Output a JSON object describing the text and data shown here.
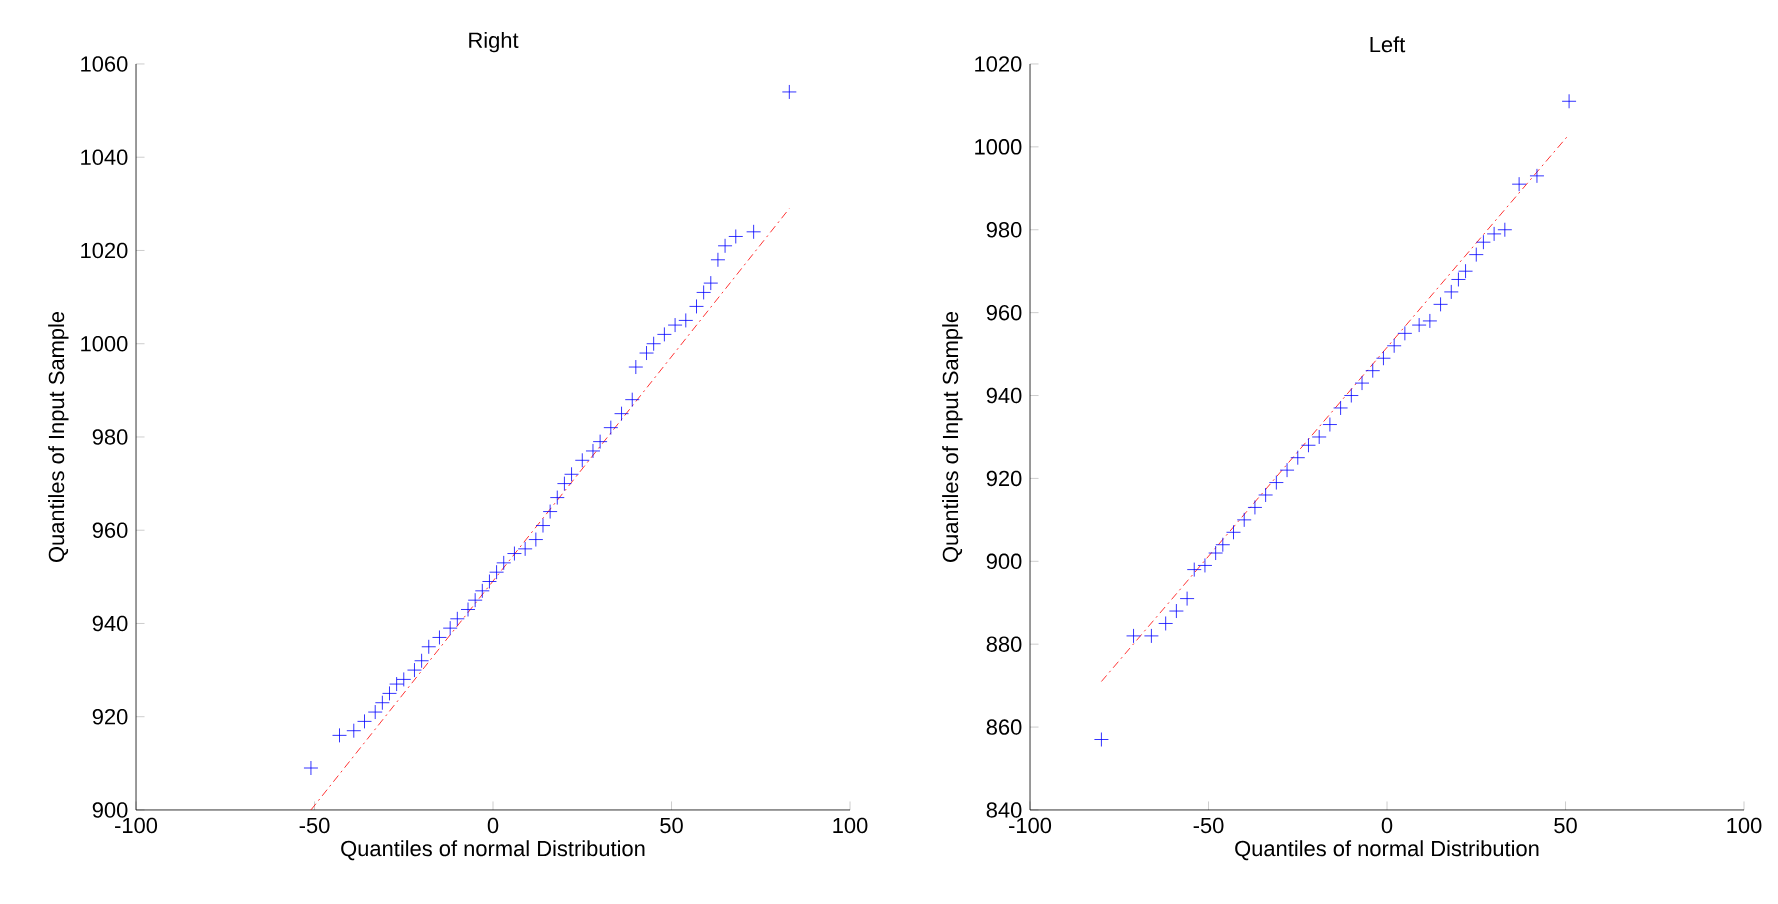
{
  "chart_data": [
    {
      "type": "scatter",
      "title": "Right",
      "xlabel": "Quantiles of normal Distribution",
      "ylabel": "Quantiles of Input Sample",
      "xlim": [
        -100,
        100
      ],
      "ylim": [
        900,
        1060
      ],
      "xticks": [
        -100,
        -50,
        0,
        50,
        100
      ],
      "yticks": [
        900,
        920,
        940,
        960,
        980,
        1000,
        1020,
        1040,
        1060
      ],
      "series": [
        {
          "color": "#0000ff",
          "marker": "cross",
          "x": [
            -51,
            -43,
            -39,
            -36,
            -33,
            -31,
            -29,
            -27,
            -25,
            -22,
            -20,
            -18,
            -15,
            -12,
            -10,
            -7,
            -5,
            -3,
            -1,
            1,
            3,
            6,
            9,
            12,
            14,
            16,
            18,
            20,
            22,
            25,
            28,
            30,
            33,
            36,
            39,
            40,
            43,
            45,
            48,
            51,
            54,
            57,
            59,
            61,
            63,
            65,
            68,
            73,
            83
          ],
          "values": [
            909,
            916,
            917,
            919,
            921,
            923,
            925,
            927,
            928,
            930,
            932,
            935,
            937,
            939,
            941,
            943,
            945,
            947,
            949,
            951,
            953,
            955,
            956,
            958,
            961,
            964,
            967,
            970,
            972,
            975,
            977,
            979,
            982,
            985,
            988,
            995,
            998,
            1000,
            1002,
            1004,
            1005,
            1008,
            1011,
            1013,
            1018,
            1021,
            1023,
            1024,
            1054
          ]
        },
        {
          "type": "line",
          "color": "#ff0000",
          "line_style": "dashed",
          "x": [
            -51,
            83
          ],
          "values": [
            900,
            1029
          ]
        }
      ]
    },
    {
      "type": "scatter",
      "title": "Left",
      "xlabel": "Quantiles of normal Distribution",
      "ylabel": "Quantiles of Input Sample",
      "xlim": [
        -100,
        100
      ],
      "ylim": [
        840,
        1020
      ],
      "xticks": [
        -100,
        -50,
        0,
        50,
        100
      ],
      "yticks": [
        840,
        860,
        880,
        900,
        920,
        940,
        960,
        980,
        1000,
        1020
      ],
      "series": [
        {
          "color": "#0000ff",
          "marker": "cross",
          "x": [
            -80,
            -71,
            -66,
            -62,
            -59,
            -56,
            -54,
            -51,
            -48,
            -46,
            -43,
            -40,
            -37,
            -34,
            -31,
            -28,
            -25,
            -22,
            -19,
            -16,
            -13,
            -10,
            -7,
            -4,
            -1,
            2,
            5,
            9,
            12,
            15,
            18,
            20,
            22,
            25,
            27,
            30,
            33,
            37,
            42,
            51
          ],
          "values": [
            857,
            882,
            882,
            885,
            888,
            891,
            898,
            899,
            902,
            904,
            907,
            910,
            913,
            916,
            919,
            922,
            925,
            928,
            930,
            933,
            937,
            940,
            943,
            946,
            949,
            952,
            955,
            957,
            958,
            962,
            965,
            968,
            970,
            974,
            977,
            979,
            980,
            991,
            993,
            1011
          ]
        },
        {
          "type": "line",
          "color": "#ff0000",
          "line_style": "dashed",
          "x": [
            -80,
            51
          ],
          "values": [
            871,
            1003
          ]
        }
      ]
    }
  ]
}
